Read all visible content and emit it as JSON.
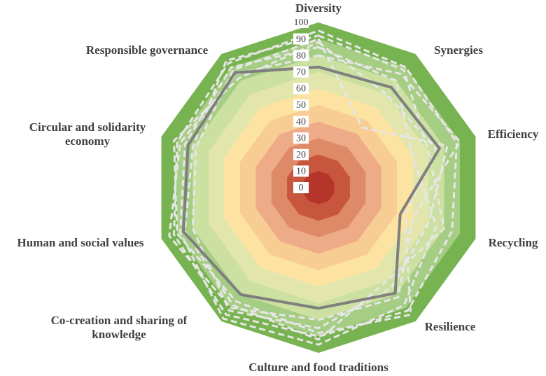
{
  "chart_data": {
    "type": "radar",
    "categories": [
      "Diversity",
      "Synergies",
      "Efficiency",
      "Recycling",
      "Resilience",
      "Culture and food traditions",
      "Co-creation and sharing of knowledge",
      "Human and social values",
      "Circular and solidarity economy",
      "Responsible governance"
    ],
    "rlim": [
      0,
      100
    ],
    "rticks": [
      0,
      10,
      20,
      30,
      40,
      50,
      60,
      70,
      80,
      90,
      100
    ],
    "band_colors": [
      "#b5352b",
      "#c8553e",
      "#de8a68",
      "#eeab88",
      "#f7cd93",
      "#fde3a2",
      "#e2e6ad",
      "#cbe0a1",
      "#a6cd84",
      "#77b350"
    ],
    "series": [
      {
        "color": "#e6e6e6",
        "dashed": true,
        "values": [
          95,
          90,
          88,
          85,
          92,
          90,
          95,
          92,
          90,
          93
        ]
      },
      {
        "color": "#e6e6e6",
        "dashed": true,
        "values": [
          85,
          80,
          60,
          75,
          88,
          95,
          98,
          88,
          85,
          90
        ]
      },
      {
        "color": "#e6e6e6",
        "dashed": true,
        "values": [
          90,
          45,
          82,
          70,
          75,
          85,
          92,
          80,
          78,
          88
        ]
      },
      {
        "color": "#e6e6e6",
        "dashed": true,
        "values": [
          80,
          85,
          90,
          60,
          82,
          80,
          90,
          95,
          88,
          85
        ]
      },
      {
        "color": "#e6e6e6",
        "dashed": true,
        "values": [
          88,
          70,
          75,
          55,
          95,
          88,
          85,
          90,
          92,
          82
        ]
      },
      {
        "color": "#e6e6e6",
        "dashed": true,
        "values": [
          92,
          88,
          70,
          80,
          70,
          92,
          88,
          85,
          80,
          95
        ]
      },
      {
        "color": "#7f7f7f",
        "dashed": false,
        "values": [
          73,
          75,
          77,
          52,
          79,
          73,
          80,
          86,
          83,
          86
        ]
      }
    ]
  }
}
